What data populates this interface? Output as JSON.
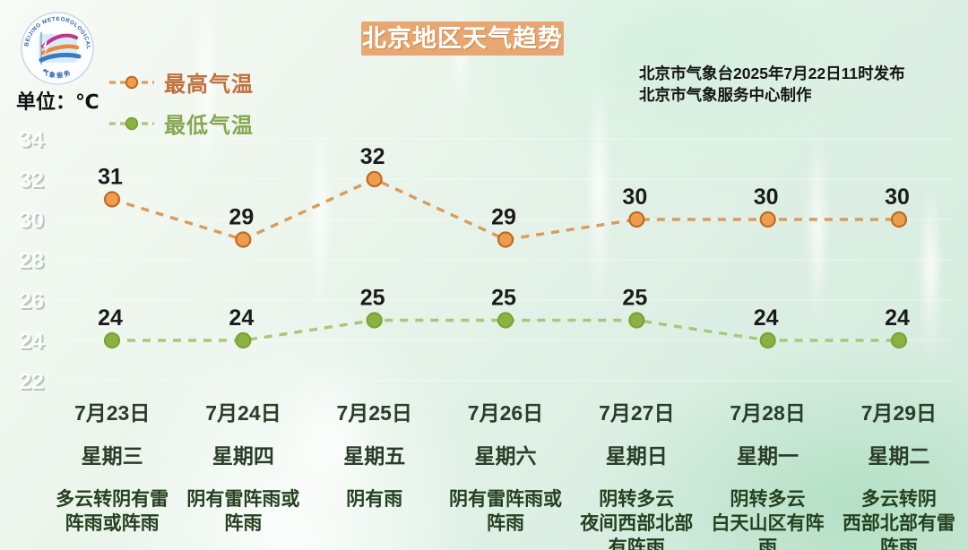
{
  "header": {
    "unit_label": "单位：℃",
    "title": "北京地区天气趋势",
    "issued_line": "北京市气象台2025年7月22日11时发布",
    "produced_line": "北京市气象服务中心制作",
    "logo_text": "BEIJING METEOROLOGICAL SERVICE"
  },
  "colors": {
    "title_bg": "#e8a771",
    "high": {
      "line": "#db9b5e",
      "marker_fill": "#ee9d50",
      "marker_stroke": "#c06a20",
      "text": "#c0703c"
    },
    "low": {
      "line": "#abc67c",
      "marker_fill": "#8cb242",
      "marker_stroke": "#7aa239",
      "text": "#85a751"
    },
    "value_label": "#1b1b1b",
    "axis_label": "#ffffff",
    "day_text": "#2a3d28"
  },
  "legend": [
    {
      "label": "最高气温",
      "series": "high"
    },
    {
      "label": "最低气温",
      "series": "low"
    }
  ],
  "chart_data": {
    "type": "line",
    "title": "北京地区天气趋势",
    "ylabel": "℃",
    "categories": [
      "7月23日",
      "7月24日",
      "7月25日",
      "7月26日",
      "7月27日",
      "7月28日",
      "7月29日"
    ],
    "series": [
      {
        "name": "最高气温",
        "values": [
          31,
          29,
          32,
          29,
          30,
          30,
          30
        ],
        "color_key": "high"
      },
      {
        "name": "最低气温",
        "values": [
          24,
          24,
          25,
          25,
          25,
          24,
          24
        ],
        "color_key": "low"
      }
    ],
    "yticks": [
      34,
      32,
      30,
      28,
      26,
      24,
      22
    ],
    "ylim": [
      21,
      35
    ],
    "grid": "faint horizontal white lines",
    "legend_position": "top-left",
    "line_style": "dashed with circle markers"
  },
  "days": [
    {
      "date": "7月23日",
      "weekday": "星期三",
      "weather_lines": [
        "多云转阴有雷",
        "阵雨或阵雨"
      ]
    },
    {
      "date": "7月24日",
      "weekday": "星期四",
      "weather_lines": [
        "阴有雷阵雨或",
        "阵雨"
      ]
    },
    {
      "date": "7月25日",
      "weekday": "星期五",
      "weather_lines": [
        "阴有雨"
      ]
    },
    {
      "date": "7月26日",
      "weekday": "星期六",
      "weather_lines": [
        "阴有雷阵雨或",
        "阵雨"
      ]
    },
    {
      "date": "7月27日",
      "weekday": "星期日",
      "weather_lines": [
        "阴转多云",
        "夜间西部北部",
        "有阵雨"
      ]
    },
    {
      "date": "7月28日",
      "weekday": "星期一",
      "weather_lines": [
        "阴转多云",
        "白天山区有阵",
        "雨"
      ]
    },
    {
      "date": "7月29日",
      "weekday": "星期二",
      "weather_lines": [
        "多云转阴",
        "西部北部有雷",
        "阵雨"
      ]
    }
  ]
}
